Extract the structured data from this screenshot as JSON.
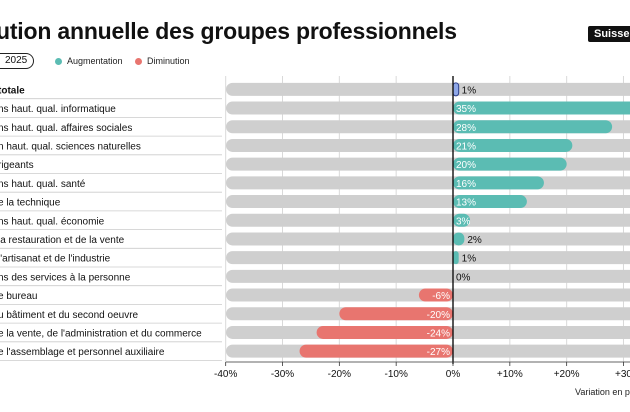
{
  "header": {
    "title": "ution annuelle des groupes professionnels",
    "region": "Suisse",
    "period": "2025"
  },
  "legend": {
    "items": [
      {
        "label": "Augmentation",
        "color": "#5bbcb3"
      },
      {
        "label": "Diminution",
        "color": "#e8756f"
      }
    ]
  },
  "axis_caption": "Variation en p",
  "colors": {
    "increase": "#5bbcb3",
    "decrease": "#e8756f",
    "highlight": "#8ea7e8",
    "track": "#cfcfcf"
  },
  "chart_data": {
    "type": "bar",
    "orientation": "horizontal",
    "categories": [
      "totale",
      "ns haut. qual. informatique",
      "ns haut. qual. affaires sociales",
      "n haut. qual. sciences naturelles",
      "rigeants",
      "ns haut. qual. santé",
      "e la technique",
      "ns haut. qual. économie",
      "la restauration et de la vente",
      "l'artisanat et de l'industrie",
      "ns des services à la personne",
      "e bureau",
      "u bâtiment et du second oeuvre",
      "e la vente, de l'administration et du commerce",
      "e l'assemblage et personnel auxiliaire"
    ],
    "values": [
      1,
      35,
      28,
      21,
      20,
      16,
      13,
      3,
      2,
      1,
      0,
      -6,
      -20,
      -24,
      -27
    ],
    "data_labels": [
      "1%",
      "35%",
      "28%",
      "21%",
      "20%",
      "16%",
      "13%",
      "3%",
      "2%",
      "1%",
      "0%",
      "-6%",
      "-20%",
      "-24%",
      "-27%"
    ],
    "x_ticks": [
      -40,
      -30,
      -20,
      -10,
      0,
      10,
      20,
      30
    ],
    "x_tick_labels": [
      "-40%",
      "-30%",
      "-20%",
      "-10%",
      "0%",
      "+10%",
      "+20%",
      "+30"
    ],
    "xlim": [
      -40,
      31
    ],
    "xlabel": "Variation en p",
    "legend": [
      "Augmentation",
      "Diminution"
    ],
    "legend_position": "top-left",
    "grid": true
  }
}
